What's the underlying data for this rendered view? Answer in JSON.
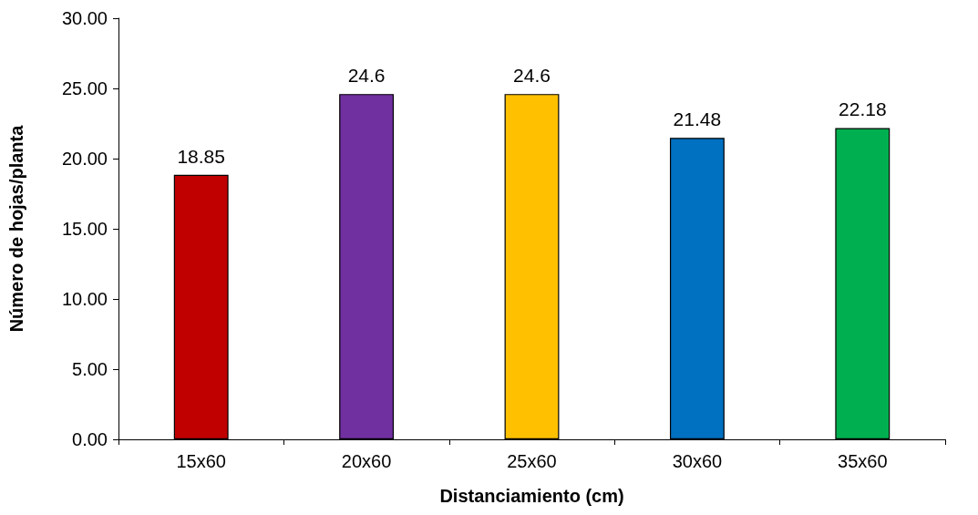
{
  "chart_data": {
    "type": "bar",
    "xlabel": "Distanciamiento (cm)",
    "ylabel": "Número de hojas/planta",
    "categories": [
      "15x60",
      "20x60",
      "25x60",
      "30x60",
      "35x60"
    ],
    "values": [
      18.85,
      24.6,
      24.6,
      21.48,
      22.18
    ],
    "colors": [
      "#c00000",
      "#7030a0",
      "#ffc000",
      "#0070c0",
      "#00b050"
    ],
    "ylim": [
      0,
      30
    ],
    "yticks": [
      {
        "value": 0,
        "label": "0.00"
      },
      {
        "value": 5,
        "label": "5.00"
      },
      {
        "value": 10,
        "label": "10.00"
      },
      {
        "value": 15,
        "label": "15.00"
      },
      {
        "value": 20,
        "label": "20.00"
      },
      {
        "value": 25,
        "label": "25.00"
      },
      {
        "value": 30,
        "label": "30.00"
      }
    ],
    "data_labels": true
  }
}
